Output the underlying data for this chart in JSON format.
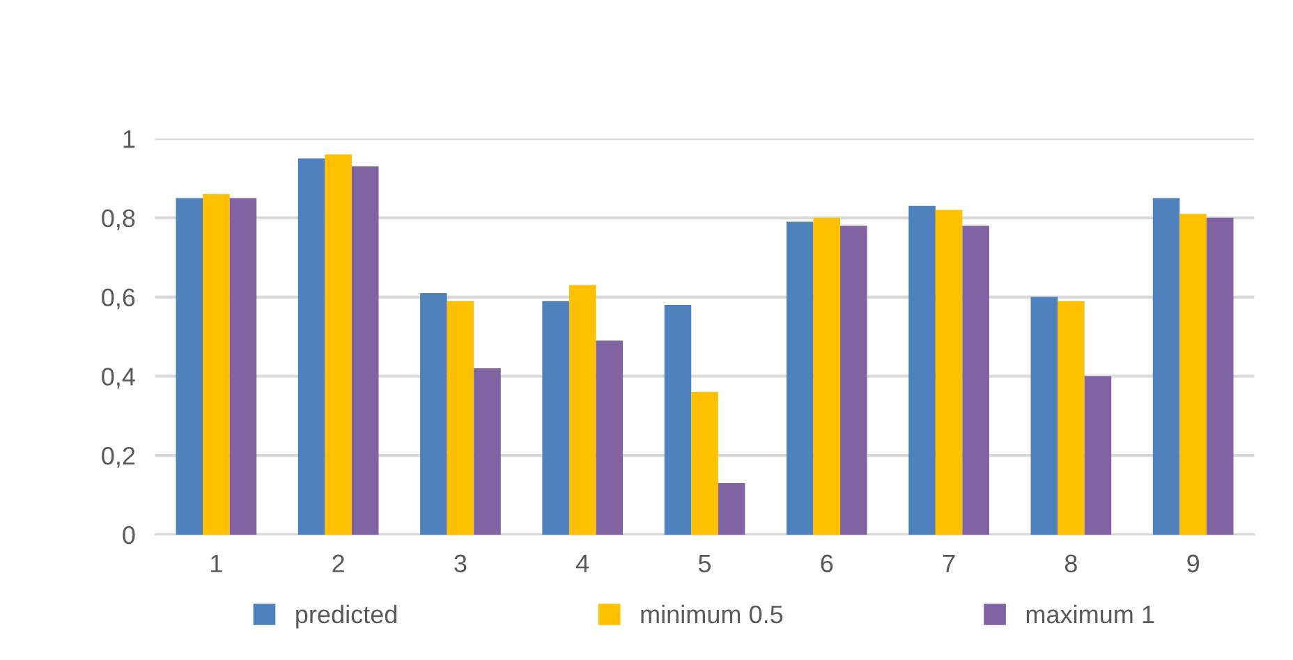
{
  "chart_data": {
    "type": "bar",
    "categories": [
      "1",
      "2",
      "3",
      "4",
      "5",
      "6",
      "7",
      "8",
      "9"
    ],
    "series": [
      {
        "name": "predicted",
        "color": "#4f81bd",
        "values": [
          0.85,
          0.95,
          0.61,
          0.59,
          0.58,
          0.79,
          0.83,
          0.6,
          0.85
        ]
      },
      {
        "name": "minimum 0.5",
        "color": "#ffc000",
        "values": [
          0.86,
          0.96,
          0.59,
          0.63,
          0.36,
          0.8,
          0.82,
          0.59,
          0.81
        ]
      },
      {
        "name": "maximum 1",
        "color": "#8064a2",
        "values": [
          0.85,
          0.93,
          0.42,
          0.49,
          0.13,
          0.78,
          0.78,
          0.4,
          0.8
        ]
      }
    ],
    "ylim": [
      0,
      1
    ],
    "yticks": [
      0,
      {
        "value": 0.2,
        "label": "0,2"
      },
      {
        "value": 0.4,
        "label": "0,4"
      },
      {
        "value": 0.6,
        "label": "0,6"
      },
      {
        "value": 0.8,
        "label": "0,8"
      },
      1
    ],
    "grid": "y",
    "legend": "bottom"
  }
}
